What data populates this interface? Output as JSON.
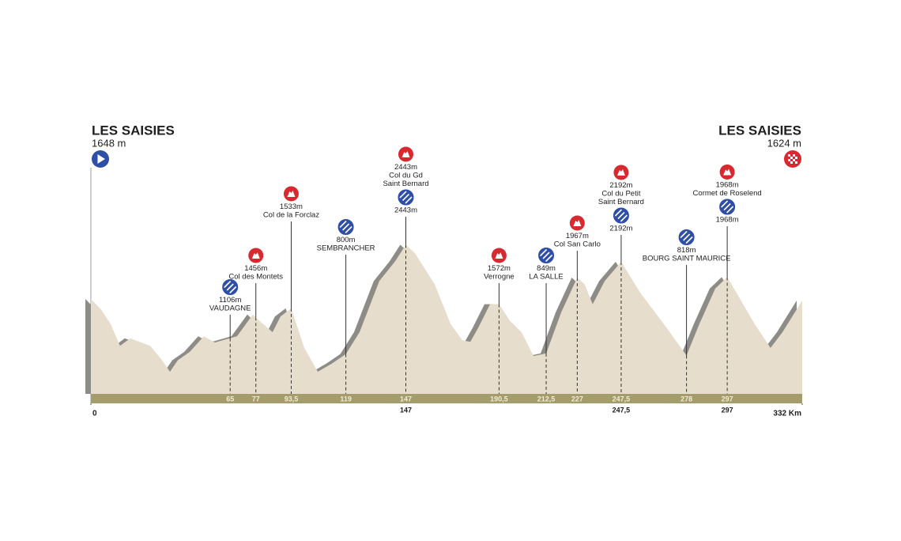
{
  "chart_data": {
    "type": "profile",
    "start": {
      "name": "LES SAISIES",
      "elevation_label": "1648 m"
    },
    "finish": {
      "name": "LES SAISIES",
      "elevation_label": "1624 m"
    },
    "xlim": [
      0,
      332
    ],
    "xticks": [
      0,
      {
        "value": 332,
        "label": "332 Km"
      }
    ],
    "profile": {
      "km": [
        0,
        4.8,
        9.2,
        13.6,
        18.4,
        27.7,
        33.2,
        36.9,
        40.6,
        46.1,
        52.7,
        57.9,
        68.2,
        75.6,
        78.6,
        84.8,
        88.5,
        93.5,
        99.6,
        105.9,
        112.5,
        119,
        125.4,
        134.6,
        142,
        147,
        151.2,
        160.5,
        167.9,
        173.4,
        177.1,
        180.7,
        186.3,
        190.5,
        195.5,
        201,
        206.6,
        212.5,
        219.5,
        227,
        230.5,
        234.2,
        239.8,
        247.5,
        256.4,
        267.4,
        278,
        284,
        291.4,
        297,
        302.4,
        309.8,
        317.2,
        322.8,
        332
      ],
      "elevation": [
        1648,
        1490,
        1280,
        960,
        1070,
        960,
        750,
        580,
        750,
        870,
        1100,
        1010,
        1100,
        1420,
        1330,
        1160,
        1390,
        1510,
        930,
        580,
        700,
        840,
        1160,
        1910,
        2200,
        2443,
        2320,
        1860,
        1280,
        1040,
        1020,
        1220,
        1570,
        1572,
        1330,
        1160,
        810,
        849,
        1450,
        1960,
        1860,
        1570,
        1910,
        2192,
        1740,
        1280,
        818,
        1280,
        1800,
        1968,
        1680,
        1280,
        930,
        1160,
        1624
      ]
    },
    "waypoints": [
      {
        "km": 65,
        "sprint": {
          "label": "1106m",
          "name": [
            "VAUDAGNE"
          ]
        }
      },
      {
        "km": 77,
        "climb": {
          "label": "1456m",
          "name": [
            "Col des Montets"
          ]
        }
      },
      {
        "km": {
          "value": 93.5,
          "label": "93,5"
        },
        "climb": {
          "label": "1533m",
          "name": [
            "Col de la Forclaz"
          ]
        }
      },
      {
        "km": 119,
        "sprint": {
          "label": "800m",
          "name": [
            "SEMBRANCHER"
          ]
        }
      },
      {
        "km": 147,
        "climb": {
          "label": "2443m",
          "name": [
            "Col du Gd",
            "Saint Bernard"
          ]
        },
        "sprint": {
          "label": "2443m"
        }
      },
      {
        "km": {
          "value": 190.5,
          "label": "190,5"
        },
        "climb": {
          "label": "1572m",
          "name": [
            "Verrogne"
          ]
        }
      },
      {
        "km": {
          "value": 212.5,
          "label": "212,5"
        },
        "sprint": {
          "label": "849m",
          "name": [
            "LA SALLE"
          ]
        }
      },
      {
        "km": 227,
        "climb": {
          "label": "1967m",
          "name": [
            "Col San Carlo"
          ]
        }
      },
      {
        "km": {
          "value": 247.5,
          "label": "247,5"
        },
        "climb": {
          "label": "2192m",
          "name": [
            "Col du Petit",
            "Saint Bernard"
          ]
        },
        "sprint": {
          "label": "2192m"
        }
      },
      {
        "km": 278,
        "sprint": {
          "label": "818m",
          "name": [
            "BOURG SAINT MAURICE"
          ]
        }
      },
      {
        "km": 297,
        "climb": {
          "label": "1968m",
          "name": [
            "Cormet de Roselend"
          ]
        },
        "sprint": {
          "label": "1968m"
        }
      }
    ],
    "km_marks_below": [
      147,
      {
        "value": 247.5,
        "label": "247,5"
      },
      297
    ],
    "colors": {
      "terrain": "#e6ddcc",
      "shadow": "#8e8c86",
      "ground": "#a59c6c",
      "climb": "#d62a30",
      "sprint": "#2f4ea6"
    }
  }
}
